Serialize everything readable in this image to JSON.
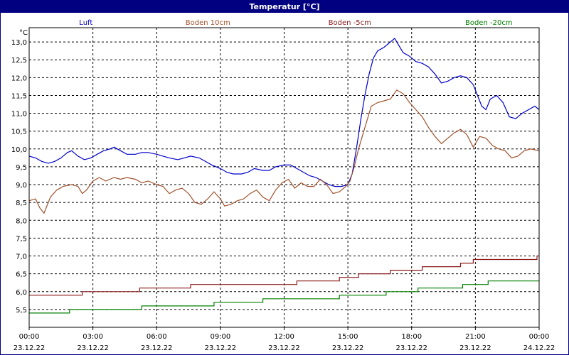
{
  "window": {
    "title": "Temperatur [°C]"
  },
  "chart_data": {
    "type": "line",
    "title": "Temperatur [°C]",
    "ylabel": "°C",
    "xlabel": "",
    "ylim": [
      5.0,
      13.4
    ],
    "xlim": [
      0,
      24
    ],
    "grid": true,
    "legend_placement": "top",
    "yticks": [
      {
        "value": 5.5,
        "label": "5,5"
      },
      {
        "value": 6.0,
        "label": "6,0"
      },
      {
        "value": 6.5,
        "label": "6,5"
      },
      {
        "value": 7.0,
        "label": "7,0"
      },
      {
        "value": 7.5,
        "label": "7,5"
      },
      {
        "value": 8.0,
        "label": "8,0"
      },
      {
        "value": 8.5,
        "label": "8,5"
      },
      {
        "value": 9.0,
        "label": "9,0"
      },
      {
        "value": 9.5,
        "label": "9,5"
      },
      {
        "value": 10.0,
        "label": "10,0"
      },
      {
        "value": 10.5,
        "label": "10,5"
      },
      {
        "value": 11.0,
        "label": "11,0"
      },
      {
        "value": 11.5,
        "label": "11,5"
      },
      {
        "value": 12.0,
        "label": "12,0"
      },
      {
        "value": 12.5,
        "label": "12,5"
      },
      {
        "value": 13.0,
        "label": "13,0"
      }
    ],
    "xticks": [
      {
        "value": 0,
        "time": "00:00",
        "date": "23.12.22"
      },
      {
        "value": 3,
        "time": "03:00",
        "date": "23.12.22"
      },
      {
        "value": 6,
        "time": "06:00",
        "date": "23.12.22"
      },
      {
        "value": 9,
        "time": "09:00",
        "date": "23.12.22"
      },
      {
        "value": 12,
        "time": "12:00",
        "date": "23.12.22"
      },
      {
        "value": 15,
        "time": "15:00",
        "date": "23.12.22"
      },
      {
        "value": 18,
        "time": "18:00",
        "date": "23.12.22"
      },
      {
        "value": 21,
        "time": "21:00",
        "date": "23.12.22"
      },
      {
        "value": 24,
        "time": "00:00",
        "date": "24.12.22"
      }
    ],
    "series": [
      {
        "name": "Luft",
        "color": "#0000cc",
        "legend_x": 0.1,
        "points": [
          [
            0,
            9.8
          ],
          [
            0.3,
            9.75
          ],
          [
            0.6,
            9.65
          ],
          [
            0.9,
            9.6
          ],
          [
            1.2,
            9.65
          ],
          [
            1.5,
            9.75
          ],
          [
            1.8,
            9.9
          ],
          [
            2.0,
            9.95
          ],
          [
            2.3,
            9.8
          ],
          [
            2.6,
            9.7
          ],
          [
            2.9,
            9.75
          ],
          [
            3.2,
            9.85
          ],
          [
            3.5,
            9.95
          ],
          [
            3.8,
            10.0
          ],
          [
            4.0,
            10.05
          ],
          [
            4.3,
            9.95
          ],
          [
            4.6,
            9.85
          ],
          [
            5.0,
            9.85
          ],
          [
            5.3,
            9.9
          ],
          [
            5.6,
            9.9
          ],
          [
            6.0,
            9.85
          ],
          [
            6.3,
            9.8
          ],
          [
            6.6,
            9.75
          ],
          [
            7.0,
            9.7
          ],
          [
            7.3,
            9.75
          ],
          [
            7.6,
            9.8
          ],
          [
            8.0,
            9.75
          ],
          [
            8.3,
            9.65
          ],
          [
            8.6,
            9.55
          ],
          [
            9.0,
            9.45
          ],
          [
            9.3,
            9.35
          ],
          [
            9.6,
            9.3
          ],
          [
            10.0,
            9.3
          ],
          [
            10.3,
            9.35
          ],
          [
            10.6,
            9.45
          ],
          [
            11.0,
            9.4
          ],
          [
            11.3,
            9.4
          ],
          [
            11.6,
            9.5
          ],
          [
            12.0,
            9.55
          ],
          [
            12.3,
            9.55
          ],
          [
            12.6,
            9.45
          ],
          [
            12.9,
            9.35
          ],
          [
            13.2,
            9.25
          ],
          [
            13.5,
            9.2
          ],
          [
            13.8,
            9.1
          ],
          [
            14.1,
            9.0
          ],
          [
            14.4,
            8.95
          ],
          [
            14.7,
            8.95
          ],
          [
            15.0,
            9.0
          ],
          [
            15.2,
            9.3
          ],
          [
            15.4,
            10.0
          ],
          [
            15.6,
            10.8
          ],
          [
            15.8,
            11.5
          ],
          [
            16.0,
            12.1
          ],
          [
            16.2,
            12.55
          ],
          [
            16.4,
            12.75
          ],
          [
            16.7,
            12.85
          ],
          [
            17.0,
            13.0
          ],
          [
            17.2,
            13.1
          ],
          [
            17.4,
            12.9
          ],
          [
            17.6,
            12.7
          ],
          [
            17.9,
            12.6
          ],
          [
            18.2,
            12.45
          ],
          [
            18.5,
            12.4
          ],
          [
            18.8,
            12.3
          ],
          [
            19.1,
            12.1
          ],
          [
            19.4,
            11.85
          ],
          [
            19.7,
            11.9
          ],
          [
            20.0,
            12.0
          ],
          [
            20.3,
            12.05
          ],
          [
            20.6,
            12.0
          ],
          [
            20.9,
            11.8
          ],
          [
            21.1,
            11.5
          ],
          [
            21.3,
            11.2
          ],
          [
            21.5,
            11.1
          ],
          [
            21.7,
            11.4
          ],
          [
            22.0,
            11.5
          ],
          [
            22.3,
            11.3
          ],
          [
            22.6,
            10.9
          ],
          [
            22.9,
            10.85
          ],
          [
            23.2,
            11.0
          ],
          [
            23.5,
            11.1
          ],
          [
            23.8,
            11.2
          ],
          [
            24.0,
            11.1
          ]
        ]
      },
      {
        "name": "Boden 10cm",
        "color": "#a0522d",
        "legend_x": 0.365,
        "points": [
          [
            0,
            8.55
          ],
          [
            0.3,
            8.6
          ],
          [
            0.5,
            8.35
          ],
          [
            0.7,
            8.2
          ],
          [
            1.0,
            8.65
          ],
          [
            1.3,
            8.85
          ],
          [
            1.6,
            8.95
          ],
          [
            2.0,
            9.0
          ],
          [
            2.3,
            8.95
          ],
          [
            2.5,
            8.75
          ],
          [
            2.7,
            8.85
          ],
          [
            3.0,
            9.1
          ],
          [
            3.3,
            9.2
          ],
          [
            3.6,
            9.1
          ],
          [
            4.0,
            9.2
          ],
          [
            4.3,
            9.15
          ],
          [
            4.6,
            9.2
          ],
          [
            5.0,
            9.15
          ],
          [
            5.3,
            9.05
          ],
          [
            5.6,
            9.1
          ],
          [
            6.0,
            9.0
          ],
          [
            6.3,
            8.95
          ],
          [
            6.6,
            8.75
          ],
          [
            6.9,
            8.85
          ],
          [
            7.2,
            8.9
          ],
          [
            7.5,
            8.75
          ],
          [
            7.8,
            8.5
          ],
          [
            8.1,
            8.45
          ],
          [
            8.4,
            8.6
          ],
          [
            8.7,
            8.8
          ],
          [
            9.0,
            8.6
          ],
          [
            9.2,
            8.4
          ],
          [
            9.5,
            8.45
          ],
          [
            9.8,
            8.55
          ],
          [
            10.1,
            8.6
          ],
          [
            10.4,
            8.75
          ],
          [
            10.7,
            8.85
          ],
          [
            11.0,
            8.65
          ],
          [
            11.3,
            8.55
          ],
          [
            11.6,
            8.85
          ],
          [
            11.9,
            9.05
          ],
          [
            12.2,
            9.15
          ],
          [
            12.5,
            8.9
          ],
          [
            12.8,
            9.05
          ],
          [
            13.1,
            8.95
          ],
          [
            13.4,
            8.95
          ],
          [
            13.7,
            9.15
          ],
          [
            14.0,
            9.0
          ],
          [
            14.3,
            8.75
          ],
          [
            14.6,
            8.8
          ],
          [
            14.9,
            8.95
          ],
          [
            15.1,
            9.1
          ],
          [
            15.3,
            9.5
          ],
          [
            15.5,
            10.0
          ],
          [
            15.8,
            10.6
          ],
          [
            16.1,
            11.2
          ],
          [
            16.4,
            11.3
          ],
          [
            16.7,
            11.35
          ],
          [
            17.0,
            11.4
          ],
          [
            17.3,
            11.65
          ],
          [
            17.6,
            11.55
          ],
          [
            17.9,
            11.3
          ],
          [
            18.2,
            11.1
          ],
          [
            18.5,
            10.9
          ],
          [
            18.8,
            10.6
          ],
          [
            19.1,
            10.35
          ],
          [
            19.4,
            10.15
          ],
          [
            19.7,
            10.3
          ],
          [
            20.0,
            10.45
          ],
          [
            20.3,
            10.55
          ],
          [
            20.6,
            10.4
          ],
          [
            20.9,
            10.05
          ],
          [
            21.2,
            10.35
          ],
          [
            21.5,
            10.3
          ],
          [
            21.8,
            10.1
          ],
          [
            22.1,
            10.0
          ],
          [
            22.4,
            9.95
          ],
          [
            22.7,
            9.75
          ],
          [
            23.0,
            9.8
          ],
          [
            23.3,
            9.95
          ],
          [
            23.6,
            10.0
          ],
          [
            24.0,
            9.95
          ]
        ]
      },
      {
        "name": "Boden -5cm",
        "color": "#8b1a1a",
        "legend_x": 0.615,
        "points": [
          [
            0,
            5.9
          ],
          [
            2.5,
            5.9
          ],
          [
            2.5,
            6.0
          ],
          [
            5.2,
            6.0
          ],
          [
            5.2,
            6.1
          ],
          [
            7.6,
            6.1
          ],
          [
            7.6,
            6.2
          ],
          [
            12.6,
            6.2
          ],
          [
            12.6,
            6.3
          ],
          [
            14.6,
            6.3
          ],
          [
            14.6,
            6.4
          ],
          [
            15.5,
            6.4
          ],
          [
            15.5,
            6.5
          ],
          [
            17.0,
            6.5
          ],
          [
            17.0,
            6.6
          ],
          [
            18.5,
            6.6
          ],
          [
            18.5,
            6.7
          ],
          [
            20.3,
            6.7
          ],
          [
            20.3,
            6.8
          ],
          [
            20.9,
            6.8
          ],
          [
            20.9,
            6.9
          ],
          [
            23.9,
            6.9
          ],
          [
            23.9,
            7.0
          ],
          [
            24.0,
            7.0
          ]
        ]
      },
      {
        "name": "Boden -20cm",
        "color": "#008000",
        "legend_x": 0.86,
        "points": [
          [
            0,
            5.4
          ],
          [
            1.9,
            5.4
          ],
          [
            1.9,
            5.5
          ],
          [
            5.3,
            5.5
          ],
          [
            5.3,
            5.6
          ],
          [
            8.7,
            5.6
          ],
          [
            8.7,
            5.7
          ],
          [
            11.0,
            5.7
          ],
          [
            11.0,
            5.8
          ],
          [
            14.6,
            5.8
          ],
          [
            14.6,
            5.9
          ],
          [
            16.8,
            5.9
          ],
          [
            16.8,
            6.0
          ],
          [
            18.3,
            6.0
          ],
          [
            18.3,
            6.1
          ],
          [
            20.4,
            6.1
          ],
          [
            20.4,
            6.2
          ],
          [
            21.6,
            6.2
          ],
          [
            21.6,
            6.3
          ],
          [
            24.0,
            6.3
          ]
        ]
      }
    ]
  }
}
